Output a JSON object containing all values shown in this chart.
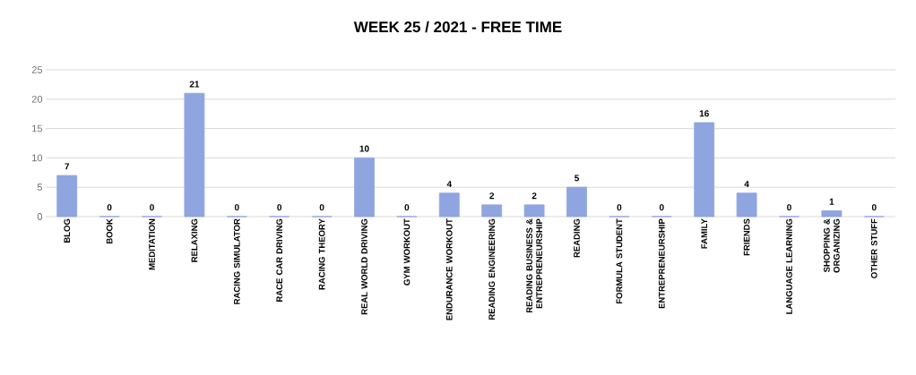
{
  "chart_data": {
    "type": "bar",
    "title": "WEEK 25  / 2021 - FREE TIME",
    "categories": [
      "BLOG",
      "BOOK",
      "MEDITATION",
      "RELAXING",
      "RACING SIMULATOR",
      "RACE CAR DRIVING",
      "RACING THEORY",
      "REAL WORLD DRIVING",
      "GYM WORKOUT",
      "ENDURANCE WORKOUT",
      "READING ENGINEERING",
      "READING BUSINESS & ENTREPRENEURSHIP",
      "READING",
      "FORMULA STUDENT",
      "ENTREPRENEURSHIP",
      "FAMILY",
      "FRIENDS",
      "LANGUAGE LEARNING",
      "SHOPPING & ORGANIZING",
      "OTHER STUFF"
    ],
    "values": [
      7,
      0,
      0,
      21,
      0,
      0,
      0,
      10,
      0,
      4,
      2,
      2,
      5,
      0,
      0,
      16,
      4,
      0,
      1,
      0
    ],
    "color": "#8fa5e0",
    "ylim": [
      0,
      25
    ],
    "yticks": [
      0,
      5,
      10,
      15,
      20,
      25
    ],
    "grid": "y",
    "data_labels": true
  }
}
